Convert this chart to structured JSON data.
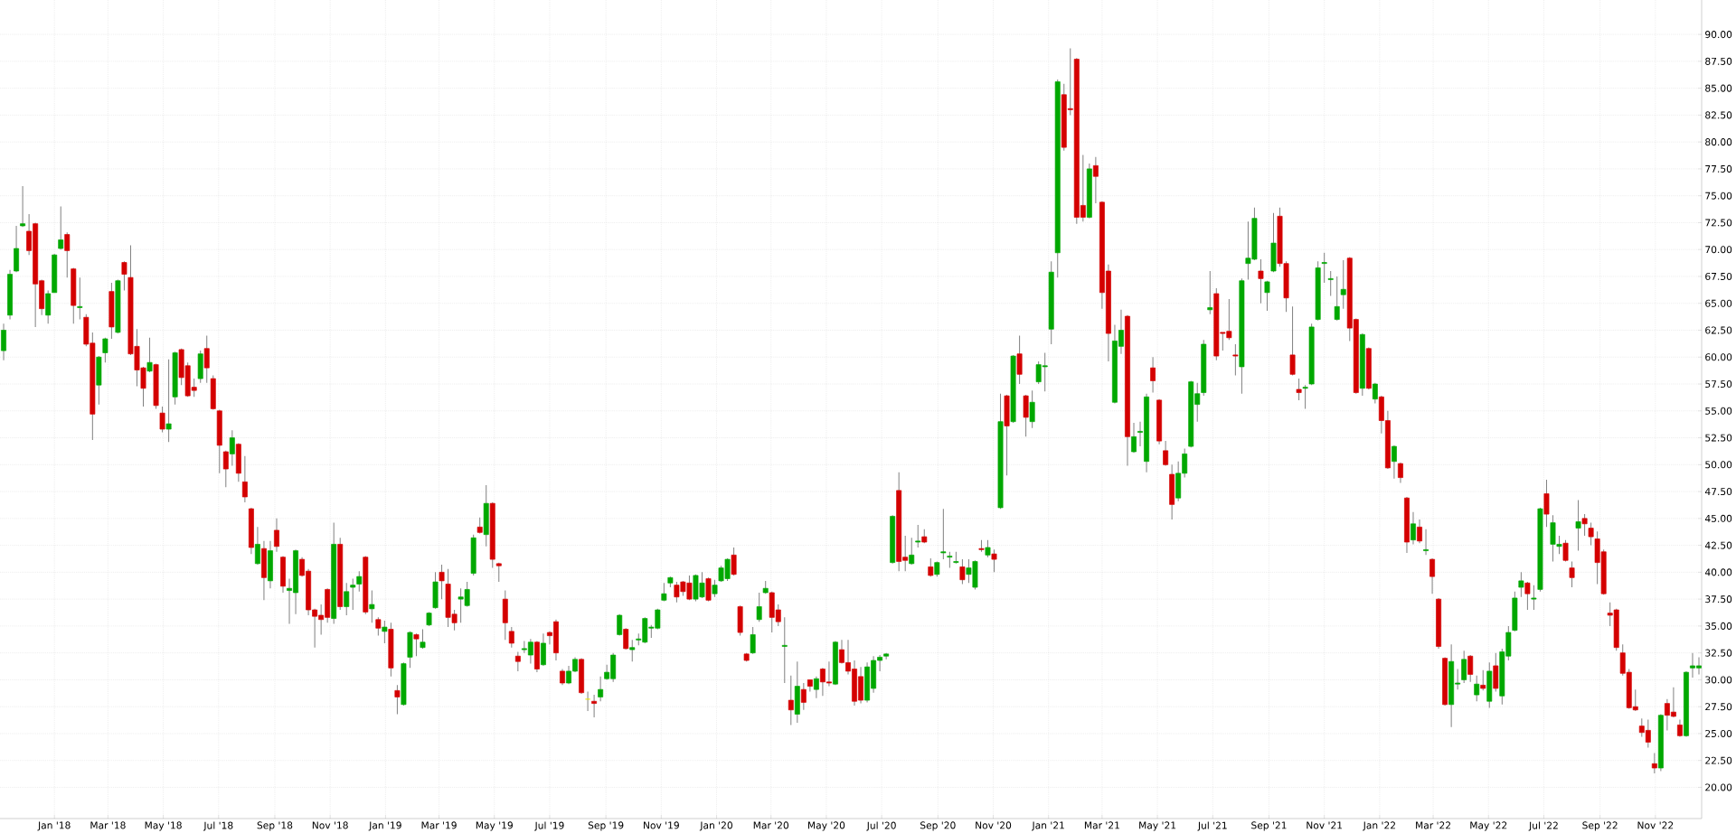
{
  "chart_data": {
    "type": "candlestick",
    "x": [
      "2017-11-06",
      "2017-11-13",
      "2017-11-20",
      "2017-11-27",
      "2017-12-04",
      "2017-12-11",
      "2017-12-18",
      "2017-12-25",
      "2018-01-01",
      "2018-01-08",
      "2018-01-15",
      "2018-01-22",
      "2018-01-29",
      "2018-02-05",
      "2018-02-12",
      "2018-02-19",
      "2018-02-26",
      "2018-03-05",
      "2018-03-12",
      "2018-03-19",
      "2018-03-26",
      "2018-04-02",
      "2018-04-09",
      "2018-04-16",
      "2018-04-23",
      "2018-04-30",
      "2018-05-07",
      "2018-05-14",
      "2018-05-21",
      "2018-05-28",
      "2018-06-04",
      "2018-06-11",
      "2018-06-18",
      "2018-06-25",
      "2018-07-02",
      "2018-07-09",
      "2018-07-16",
      "2018-07-23",
      "2018-07-30",
      "2018-08-06",
      "2018-08-13",
      "2018-08-20",
      "2018-08-27",
      "2018-09-03",
      "2018-09-10",
      "2018-09-17",
      "2018-09-24",
      "2018-10-01",
      "2018-10-08",
      "2018-10-15",
      "2018-10-22",
      "2018-10-29",
      "2018-11-05",
      "2018-11-12",
      "2018-11-19",
      "2018-11-26",
      "2018-12-03",
      "2018-12-10",
      "2018-12-17",
      "2018-12-24",
      "2018-12-31",
      "2019-01-07",
      "2019-01-14",
      "2019-01-21",
      "2019-01-28",
      "2019-02-04",
      "2019-02-11",
      "2019-02-18",
      "2019-02-25",
      "2019-03-04",
      "2019-03-11",
      "2019-03-18",
      "2019-03-25",
      "2019-04-01",
      "2019-04-08",
      "2019-04-15",
      "2019-04-22",
      "2019-04-29",
      "2019-05-06",
      "2019-05-13",
      "2019-05-20",
      "2019-05-27",
      "2019-06-03",
      "2019-06-10",
      "2019-06-17",
      "2019-06-24",
      "2019-07-01",
      "2019-07-08",
      "2019-07-15",
      "2019-07-22",
      "2019-07-29",
      "2019-08-05",
      "2019-08-12",
      "2019-08-19",
      "2019-08-26",
      "2019-09-02",
      "2019-09-09",
      "2019-09-16",
      "2019-09-23",
      "2019-09-30",
      "2019-10-07",
      "2019-10-14",
      "2019-10-21",
      "2019-10-28",
      "2019-11-04",
      "2019-11-11",
      "2019-11-18",
      "2019-11-25",
      "2019-12-02",
      "2019-12-09",
      "2019-12-16",
      "2019-12-23",
      "2019-12-30",
      "2020-01-06",
      "2020-01-13",
      "2020-01-20",
      "2020-01-27",
      "2020-02-03",
      "2020-02-10",
      "2020-02-17",
      "2020-02-24",
      "2020-03-02",
      "2020-03-09",
      "2020-03-16",
      "2020-03-23",
      "2020-03-30",
      "2020-04-06",
      "2020-04-13",
      "2020-04-20",
      "2020-04-27",
      "2020-05-04",
      "2020-05-11",
      "2020-05-18",
      "2020-05-25",
      "2020-06-01",
      "2020-06-08",
      "2020-06-15",
      "2020-06-22",
      "2020-06-29",
      "2020-07-06",
      "2020-07-13",
      "2020-07-20",
      "2020-07-27",
      "2020-08-03",
      "2020-08-10",
      "2020-08-17",
      "2020-08-24",
      "2020-08-31",
      "2020-09-07",
      "2020-09-14",
      "2020-09-21",
      "2020-09-28",
      "2020-10-05",
      "2020-10-12",
      "2020-10-19",
      "2020-10-26",
      "2020-11-02",
      "2020-11-09",
      "2020-11-16",
      "2020-11-23",
      "2020-11-30",
      "2020-12-07",
      "2020-12-14",
      "2020-12-21",
      "2020-12-28",
      "2021-01-04",
      "2021-01-11",
      "2021-01-18",
      "2021-01-25",
      "2021-02-01",
      "2021-02-08",
      "2021-02-15",
      "2021-02-22",
      "2021-03-01",
      "2021-03-08",
      "2021-03-15",
      "2021-03-22",
      "2021-03-29",
      "2021-04-05",
      "2021-04-12",
      "2021-04-19",
      "2021-04-26",
      "2021-05-03",
      "2021-05-10",
      "2021-05-17",
      "2021-05-24",
      "2021-05-31",
      "2021-06-07",
      "2021-06-14",
      "2021-06-21",
      "2021-06-28",
      "2021-07-05",
      "2021-07-12",
      "2021-07-19",
      "2021-07-26",
      "2021-08-02",
      "2021-08-09",
      "2021-08-16",
      "2021-08-23",
      "2021-08-30",
      "2021-09-06",
      "2021-09-13",
      "2021-09-20",
      "2021-09-27",
      "2021-10-04",
      "2021-10-11",
      "2021-10-18",
      "2021-10-25",
      "2021-11-01",
      "2021-11-08",
      "2021-11-15",
      "2021-11-22",
      "2021-11-29",
      "2021-12-06",
      "2021-12-13",
      "2021-12-20",
      "2021-12-27",
      "2022-01-03",
      "2022-01-10",
      "2022-01-17",
      "2022-01-24",
      "2022-01-31",
      "2022-02-07",
      "2022-02-14",
      "2022-02-21",
      "2022-02-28",
      "2022-03-07",
      "2022-03-14",
      "2022-03-21",
      "2022-03-28",
      "2022-04-04",
      "2022-04-11",
      "2022-04-18",
      "2022-04-25",
      "2022-05-02",
      "2022-05-09",
      "2022-05-16",
      "2022-05-23",
      "2022-05-30",
      "2022-06-06",
      "2022-06-13",
      "2022-06-20",
      "2022-06-27",
      "2022-07-04",
      "2022-07-11",
      "2022-07-18",
      "2022-07-25",
      "2022-08-01",
      "2022-08-08",
      "2022-08-15",
      "2022-08-22",
      "2022-08-29",
      "2022-09-05",
      "2022-09-12",
      "2022-09-19",
      "2022-09-26",
      "2022-10-03",
      "2022-10-10",
      "2022-10-17",
      "2022-10-24",
      "2022-10-31",
      "2022-11-07",
      "2022-11-14",
      "2022-11-21",
      "2022-11-28",
      "2022-12-05",
      "2022-12-12",
      "2022-12-19"
    ],
    "ohlc": [
      [
        60.6,
        63.1,
        59.7,
        62.5
      ],
      [
        63.9,
        68.1,
        63.5,
        67.7
      ],
      [
        68.0,
        72.2,
        67.9,
        70.1
      ],
      [
        72.2,
        75.9,
        72.1,
        72.4
      ],
      [
        71.7,
        73.3,
        69.5,
        69.9
      ],
      [
        72.4,
        72.5,
        62.8,
        66.8
      ],
      [
        67.1,
        67.2,
        63.9,
        64.5
      ],
      [
        63.9,
        66.2,
        63.1,
        65.9
      ],
      [
        66.0,
        69.6,
        66.0,
        69.5
      ],
      [
        70.1,
        74.0,
        70.0,
        70.9
      ],
      [
        71.4,
        71.6,
        67.4,
        69.9
      ],
      [
        68.2,
        68.3,
        63.1,
        64.8
      ],
      [
        64.6,
        67.4,
        63.5,
        64.7
      ],
      [
        63.7,
        64.0,
        61.0,
        61.2
      ],
      [
        61.3,
        62.3,
        52.3,
        54.7
      ],
      [
        57.4,
        60.1,
        55.6,
        60.0
      ],
      [
        60.4,
        61.8,
        59.5,
        61.7
      ],
      [
        66.1,
        66.9,
        61.7,
        62.8
      ],
      [
        62.3,
        67.2,
        62.2,
        67.1
      ],
      [
        68.8,
        68.9,
        66.2,
        67.7
      ],
      [
        67.4,
        70.4,
        60.2,
        60.3
      ],
      [
        61.0,
        62.6,
        57.3,
        58.8
      ],
      [
        59.0,
        59.1,
        55.4,
        57.1
      ],
      [
        58.7,
        61.8,
        58.6,
        59.5
      ],
      [
        59.3,
        59.4,
        55.2,
        55.5
      ],
      [
        54.8,
        55.4,
        53.0,
        53.3
      ],
      [
        53.3,
        59.8,
        52.1,
        53.8
      ],
      [
        56.3,
        60.5,
        55.6,
        60.4
      ],
      [
        60.7,
        60.8,
        57.4,
        58.1
      ],
      [
        59.2,
        59.5,
        56.3,
        56.4
      ],
      [
        57.2,
        58.0,
        56.3,
        56.9
      ],
      [
        58.0,
        60.6,
        57.6,
        60.3
      ],
      [
        60.8,
        62.0,
        57.6,
        59.0
      ],
      [
        58.0,
        58.3,
        55.1,
        55.2
      ],
      [
        55.0,
        55.1,
        49.2,
        51.8
      ],
      [
        51.2,
        51.3,
        47.9,
        49.6
      ],
      [
        51.0,
        53.2,
        49.9,
        52.5
      ],
      [
        51.9,
        52.0,
        48.4,
        49.2
      ],
      [
        48.4,
        50.8,
        46.5,
        47.0
      ],
      [
        45.9,
        46.0,
        41.7,
        42.3
      ],
      [
        40.8,
        44.2,
        40.7,
        42.6
      ],
      [
        42.2,
        42.9,
        37.4,
        39.5
      ],
      [
        39.2,
        42.9,
        38.5,
        42.0
      ],
      [
        43.9,
        45.0,
        41.9,
        42.4
      ],
      [
        41.4,
        41.5,
        38.1,
        38.7
      ],
      [
        38.3,
        39.4,
        35.2,
        38.5
      ],
      [
        38.1,
        42.1,
        36.1,
        42.0
      ],
      [
        41.2,
        41.4,
        39.6,
        39.7
      ],
      [
        40.1,
        40.3,
        36.0,
        36.5
      ],
      [
        36.5,
        36.6,
        33.0,
        35.9
      ],
      [
        36.0,
        37.0,
        34.2,
        35.6
      ],
      [
        38.4,
        38.5,
        35.3,
        35.8
      ],
      [
        35.7,
        44.6,
        35.2,
        42.6
      ],
      [
        42.6,
        43.2,
        36.5,
        36.8
      ],
      [
        36.8,
        39.0,
        36.0,
        38.2
      ],
      [
        38.6,
        39.4,
        36.5,
        38.8
      ],
      [
        38.9,
        40.1,
        38.2,
        39.6
      ],
      [
        41.4,
        41.5,
        36.1,
        36.3
      ],
      [
        36.6,
        38.3,
        35.3,
        37.0
      ],
      [
        35.6,
        35.8,
        34.1,
        34.8
      ],
      [
        34.5,
        35.5,
        33.4,
        34.9
      ],
      [
        34.7,
        35.3,
        30.3,
        31.1
      ],
      [
        29.0,
        29.5,
        26.8,
        28.4
      ],
      [
        27.7,
        31.6,
        27.6,
        31.5
      ],
      [
        32.1,
        34.5,
        31.1,
        34.4
      ],
      [
        34.2,
        34.3,
        32.2,
        33.8
      ],
      [
        33.0,
        34.7,
        32.9,
        33.5
      ],
      [
        35.1,
        36.3,
        35.0,
        36.2
      ],
      [
        36.7,
        40.0,
        36.6,
        39.1
      ],
      [
        40.0,
        40.7,
        37.5,
        39.2
      ],
      [
        38.9,
        40.3,
        34.9,
        35.8
      ],
      [
        36.1,
        36.5,
        34.6,
        35.3
      ],
      [
        37.5,
        38.5,
        35.3,
        37.7
      ],
      [
        36.9,
        39.1,
        36.8,
        38.4
      ],
      [
        39.9,
        43.5,
        39.7,
        43.2
      ],
      [
        44.2,
        45.1,
        43.6,
        43.7
      ],
      [
        43.5,
        48.1,
        42.4,
        46.4
      ],
      [
        46.4,
        46.5,
        40.4,
        41.2
      ],
      [
        40.8,
        40.9,
        39.1,
        40.6
      ],
      [
        37.5,
        38.3,
        33.7,
        35.3
      ],
      [
        34.5,
        34.9,
        33.0,
        33.4
      ],
      [
        32.2,
        32.6,
        30.8,
        31.7
      ],
      [
        32.8,
        33.6,
        32.5,
        32.9
      ],
      [
        32.3,
        33.8,
        31.5,
        33.5
      ],
      [
        33.5,
        33.6,
        30.7,
        31.0
      ],
      [
        31.4,
        34.3,
        31.3,
        33.4
      ],
      [
        34.4,
        34.5,
        33.3,
        34.1
      ],
      [
        35.4,
        35.6,
        31.8,
        32.5
      ],
      [
        30.8,
        31.0,
        29.5,
        29.7
      ],
      [
        29.7,
        31.3,
        29.6,
        30.8
      ],
      [
        30.8,
        32.1,
        30.7,
        31.9
      ],
      [
        31.9,
        32.0,
        28.7,
        28.8
      ],
      [
        28.2,
        28.9,
        27.1,
        28.2
      ],
      [
        28.0,
        28.6,
        26.5,
        27.8
      ],
      [
        28.4,
        30.3,
        28.0,
        29.1
      ],
      [
        30.1,
        31.4,
        30.0,
        30.7
      ],
      [
        30.1,
        32.5,
        29.8,
        32.3
      ],
      [
        34.2,
        36.1,
        34.1,
        36.0
      ],
      [
        34.7,
        34.8,
        32.8,
        32.9
      ],
      [
        32.8,
        33.7,
        31.7,
        33.0
      ],
      [
        33.7,
        34.3,
        33.2,
        33.8
      ],
      [
        33.5,
        35.8,
        33.4,
        35.7
      ],
      [
        34.8,
        35.1,
        33.9,
        34.9
      ],
      [
        34.8,
        36.6,
        34.7,
        36.5
      ],
      [
        37.4,
        39.0,
        37.3,
        38.0
      ],
      [
        39.0,
        39.6,
        38.6,
        39.5
      ],
      [
        38.8,
        39.1,
        37.2,
        37.7
      ],
      [
        39.1,
        39.2,
        37.8,
        38.2
      ],
      [
        39.0,
        39.7,
        37.4,
        37.5
      ],
      [
        37.5,
        39.8,
        37.3,
        39.7
      ],
      [
        37.7,
        40.0,
        37.6,
        39.0
      ],
      [
        39.4,
        39.5,
        37.3,
        37.4
      ],
      [
        38.0,
        39.3,
        37.7,
        38.8
      ],
      [
        39.2,
        40.6,
        39.1,
        40.4
      ],
      [
        39.4,
        41.3,
        39.2,
        41.2
      ],
      [
        41.6,
        42.3,
        39.7,
        39.8
      ],
      [
        36.8,
        36.9,
        34.1,
        34.4
      ],
      [
        32.4,
        32.5,
        31.7,
        31.8
      ],
      [
        32.5,
        34.9,
        32.4,
        34.2
      ],
      [
        35.6,
        38.1,
        35.4,
        36.8
      ],
      [
        38.1,
        39.2,
        38.0,
        38.5
      ],
      [
        38.1,
        38.2,
        34.4,
        35.8
      ],
      [
        36.5,
        37.0,
        35.0,
        35.4
      ],
      [
        33.1,
        35.8,
        29.7,
        33.2
      ],
      [
        28.1,
        30.4,
        25.8,
        27.2
      ],
      [
        26.8,
        31.7,
        26.0,
        29.4
      ],
      [
        29.1,
        29.7,
        27.2,
        27.9
      ],
      [
        30.0,
        30.0,
        28.9,
        29.4
      ],
      [
        29.1,
        30.3,
        28.3,
        30.1
      ],
      [
        31.0,
        31.1,
        28.5,
        29.8
      ],
      [
        29.8,
        31.7,
        29.4,
        29.7
      ],
      [
        29.6,
        33.6,
        29.5,
        33.5
      ],
      [
        32.8,
        33.7,
        31.5,
        31.6
      ],
      [
        31.6,
        33.7,
        30.5,
        30.8
      ],
      [
        31.0,
        31.8,
        27.6,
        28.0
      ],
      [
        30.3,
        31.2,
        27.8,
        28.1
      ],
      [
        28.1,
        31.6,
        27.9,
        31.2
      ],
      [
        29.2,
        32.2,
        28.8,
        31.8
      ],
      [
        31.8,
        32.3,
        30.8,
        32.1
      ],
      [
        32.2,
        32.5,
        31.9,
        32.4
      ],
      [
        40.9,
        45.3,
        40.8,
        45.2
      ],
      [
        47.6,
        49.3,
        40.1,
        41.0
      ],
      [
        41.4,
        43.4,
        40.1,
        41.1
      ],
      [
        40.8,
        43.2,
        40.7,
        41.6
      ],
      [
        42.8,
        44.4,
        42.3,
        42.9
      ],
      [
        43.3,
        44.0,
        42.7,
        42.8
      ],
      [
        40.5,
        41.3,
        39.6,
        39.7
      ],
      [
        39.8,
        41.0,
        39.6,
        40.9
      ],
      [
        41.8,
        45.9,
        41.2,
        41.9
      ],
      [
        41.4,
        41.9,
        40.4,
        41.5
      ],
      [
        40.9,
        41.9,
        40.8,
        41.0
      ],
      [
        40.5,
        41.2,
        38.9,
        39.3
      ],
      [
        39.8,
        41.2,
        39.0,
        40.4
      ],
      [
        38.6,
        41.1,
        38.4,
        41.0
      ],
      [
        42.2,
        43.0,
        41.9,
        42.1
      ],
      [
        41.6,
        43.0,
        41.4,
        42.3
      ],
      [
        41.7,
        42.1,
        40.0,
        41.2
      ],
      [
        46.0,
        56.6,
        45.9,
        54.0
      ],
      [
        56.4,
        56.5,
        49.0,
        53.6
      ],
      [
        54.0,
        60.2,
        53.9,
        60.1
      ],
      [
        60.3,
        62.0,
        57.5,
        58.4
      ],
      [
        56.4,
        56.5,
        52.6,
        54.4
      ],
      [
        54.0,
        56.9,
        53.4,
        55.8
      ],
      [
        57.7,
        59.6,
        57.5,
        59.3
      ],
      [
        59.1,
        60.4,
        56.8,
        59.2
      ],
      [
        62.6,
        68.9,
        61.2,
        67.9
      ],
      [
        69.7,
        85.8,
        67.4,
        85.6
      ],
      [
        84.4,
        85.4,
        79.2,
        79.5
      ],
      [
        83.1,
        88.7,
        82.5,
        83.0
      ],
      [
        87.7,
        87.8,
        72.4,
        73.0
      ],
      [
        74.1,
        78.8,
        72.6,
        73.0
      ],
      [
        73.0,
        78.0,
        72.9,
        77.5
      ],
      [
        77.8,
        78.6,
        74.3,
        76.8
      ],
      [
        74.4,
        74.5,
        64.5,
        66.0
      ],
      [
        68.0,
        68.6,
        59.6,
        62.2
      ],
      [
        55.8,
        63.0,
        55.7,
        61.5
      ],
      [
        61.0,
        64.4,
        60.3,
        62.5
      ],
      [
        63.8,
        63.9,
        49.9,
        52.6
      ],
      [
        51.2,
        53.9,
        51.1,
        52.6
      ],
      [
        53.0,
        54.0,
        51.7,
        53.1
      ],
      [
        50.3,
        56.6,
        49.3,
        56.3
      ],
      [
        59.0,
        60.0,
        56.7,
        57.8
      ],
      [
        56.0,
        56.1,
        51.9,
        52.2
      ],
      [
        51.3,
        52.2,
        49.9,
        50.0
      ],
      [
        49.1,
        50.0,
        44.9,
        46.3
      ],
      [
        46.9,
        50.3,
        46.6,
        49.2
      ],
      [
        49.2,
        51.5,
        48.8,
        51.0
      ],
      [
        51.7,
        57.8,
        51.6,
        57.7
      ],
      [
        55.6,
        57.6,
        54.0,
        56.6
      ],
      [
        56.7,
        61.6,
        56.4,
        61.2
      ],
      [
        64.4,
        68.0,
        64.0,
        64.6
      ],
      [
        65.9,
        66.4,
        59.7,
        60.1
      ],
      [
        62.3,
        62.3,
        60.6,
        62.2
      ],
      [
        62.4,
        65.4,
        61.6,
        61.8
      ],
      [
        60.2,
        61.2,
        58.3,
        60.1
      ],
      [
        59.1,
        67.3,
        56.6,
        67.1
      ],
      [
        68.7,
        72.6,
        67.2,
        69.2
      ],
      [
        69.1,
        73.9,
        69.0,
        72.9
      ],
      [
        68.0,
        69.1,
        65.0,
        67.3
      ],
      [
        66.0,
        67.1,
        64.3,
        67.0
      ],
      [
        68.0,
        73.4,
        67.9,
        70.6
      ],
      [
        73.1,
        73.9,
        68.4,
        68.7
      ],
      [
        68.7,
        68.9,
        64.2,
        65.5
      ],
      [
        60.2,
        64.7,
        58.3,
        58.4
      ],
      [
        57.0,
        58.0,
        56.0,
        56.7
      ],
      [
        57.1,
        57.4,
        55.2,
        57.2
      ],
      [
        57.5,
        63.1,
        57.4,
        62.8
      ],
      [
        63.5,
        68.9,
        63.4,
        68.3
      ],
      [
        68.7,
        69.7,
        66.9,
        68.8
      ],
      [
        67.2,
        68.0,
        65.7,
        67.3
      ],
      [
        63.5,
        67.5,
        63.4,
        64.7
      ],
      [
        65.8,
        69.0,
        64.5,
        66.3
      ],
      [
        69.2,
        69.3,
        61.5,
        62.7
      ],
      [
        63.5,
        63.6,
        56.6,
        56.7
      ],
      [
        57.1,
        62.2,
        56.4,
        62.1
      ],
      [
        60.8,
        60.9,
        57.0,
        57.1
      ],
      [
        56.1,
        57.6,
        55.7,
        57.5
      ],
      [
        56.3,
        56.4,
        52.9,
        54.1
      ],
      [
        54.1,
        55.0,
        49.6,
        49.7
      ],
      [
        50.3,
        51.8,
        48.7,
        51.7
      ],
      [
        50.1,
        50.2,
        48.3,
        48.8
      ],
      [
        46.9,
        47.0,
        41.8,
        42.8
      ],
      [
        43.0,
        45.6,
        42.6,
        44.5
      ],
      [
        44.2,
        44.9,
        42.7,
        42.9
      ],
      [
        42.0,
        44.0,
        41.6,
        42.1
      ],
      [
        41.2,
        41.3,
        38.0,
        39.6
      ],
      [
        37.5,
        37.6,
        32.9,
        33.1
      ],
      [
        32.0,
        32.1,
        27.6,
        27.7
      ],
      [
        27.7,
        33.3,
        25.6,
        31.7
      ],
      [
        29.6,
        31.0,
        29.1,
        29.7
      ],
      [
        30.0,
        32.7,
        29.7,
        31.9
      ],
      [
        32.2,
        32.3,
        29.8,
        30.5
      ],
      [
        28.6,
        30.4,
        28.0,
        29.6
      ],
      [
        29.5,
        30.9,
        29.0,
        29.2
      ],
      [
        28.0,
        31.6,
        27.4,
        30.8
      ],
      [
        31.3,
        32.5,
        28.9,
        29.2
      ],
      [
        28.5,
        32.9,
        27.7,
        32.6
      ],
      [
        32.2,
        35.0,
        31.8,
        34.4
      ],
      [
        34.6,
        38.2,
        34.5,
        37.6
      ],
      [
        38.6,
        40.0,
        37.7,
        39.2
      ],
      [
        39.0,
        39.1,
        36.5,
        38.0
      ],
      [
        37.5,
        38.8,
        36.5,
        37.6
      ],
      [
        38.4,
        46.0,
        38.2,
        45.9
      ],
      [
        47.3,
        48.6,
        44.2,
        45.4
      ],
      [
        42.6,
        45.3,
        41.0,
        44.6
      ],
      [
        42.4,
        43.4,
        41.7,
        42.6
      ],
      [
        42.7,
        43.0,
        41.0,
        41.1
      ],
      [
        40.4,
        41.0,
        38.6,
        39.5
      ],
      [
        44.1,
        46.7,
        42.0,
        44.7
      ],
      [
        45.0,
        45.4,
        43.4,
        44.5
      ],
      [
        44.1,
        44.6,
        42.5,
        43.3
      ],
      [
        43.1,
        43.8,
        38.9,
        40.9
      ],
      [
        41.9,
        42.1,
        37.9,
        38.0
      ],
      [
        36.2,
        37.2,
        35.0,
        36.0
      ],
      [
        36.5,
        36.6,
        32.7,
        33.0
      ],
      [
        32.5,
        33.3,
        30.4,
        30.6
      ],
      [
        30.7,
        31.0,
        27.3,
        27.4
      ],
      [
        27.5,
        29.1,
        27.1,
        27.2
      ],
      [
        25.7,
        26.4,
        24.7,
        25.1
      ],
      [
        25.3,
        26.3,
        23.7,
        24.2
      ],
      [
        22.2,
        23.2,
        21.3,
        21.8
      ],
      [
        21.8,
        26.8,
        21.5,
        26.7
      ],
      [
        27.8,
        28.2,
        25.3,
        26.7
      ],
      [
        27.0,
        29.3,
        26.5,
        26.6
      ],
      [
        25.8,
        26.3,
        24.7,
        24.8
      ],
      [
        24.8,
        30.8,
        24.7,
        30.7
      ],
      [
        31.1,
        32.5,
        30.2,
        31.3
      ],
      [
        31.1,
        32.1,
        30.5,
        31.3
      ]
    ],
    "colors": [
      "#00a800",
      "#00a800",
      "#00a800",
      "#00a800",
      "#d40000",
      "#d40000",
      "#d40000",
      "#00a800",
      "#00a800",
      "#00a800",
      "#d40000",
      "#d40000",
      "#00a800",
      "#d40000",
      "#d40000",
      "#00a800",
      "#00a800",
      "#d40000",
      "#00a800",
      "#d40000",
      "#d40000",
      "#d40000",
      "#d40000",
      "#00a800",
      "#d40000",
      "#d40000",
      "#00a800",
      "#00a800",
      "#d40000",
      "#d40000",
      "#d40000",
      "#00a800",
      "#d40000",
      "#d40000",
      "#d40000",
      "#d40000",
      "#00a800",
      "#d40000",
      "#d40000",
      "#d40000",
      "#00a800",
      "#d40000",
      "#00a800",
      "#d40000",
      "#d40000",
      "#00a800",
      "#00a800",
      "#d40000",
      "#d40000",
      "#d40000",
      "#d40000",
      "#d40000",
      "#00a800",
      "#d40000",
      "#00a800",
      "#00a800",
      "#00a800",
      "#d40000",
      "#00a800",
      "#d40000",
      "#00a800",
      "#d40000",
      "#d40000",
      "#00a800",
      "#00a800",
      "#d40000",
      "#00a800",
      "#00a800",
      "#00a800",
      "#d40000",
      "#d40000",
      "#d40000",
      "#00a800",
      "#00a800",
      "#00a800",
      "#d40000",
      "#00a800",
      "#d40000",
      "#d40000",
      "#d40000",
      "#d40000",
      "#d40000",
      "#00a800",
      "#00a800",
      "#d40000",
      "#00a800",
      "#d40000",
      "#d40000",
      "#d40000",
      "#00a800",
      "#00a800",
      "#d40000",
      "#e6e600",
      "#d40000",
      "#00a800",
      "#00a800",
      "#00a800",
      "#00a800",
      "#d40000",
      "#00a800",
      "#00a800",
      "#00a800",
      "#00a800",
      "#00a800",
      "#00a800",
      "#00a800",
      "#d40000",
      "#d40000",
      "#d40000",
      "#00a800",
      "#00a800",
      "#d40000",
      "#00a800",
      "#00a800",
      "#00a800",
      "#d40000",
      "#d40000",
      "#d40000",
      "#00a800",
      "#00a800",
      "#00a800",
      "#d40000",
      "#d40000",
      "#00a800",
      "#d40000",
      "#00a800",
      "#d40000",
      "#d40000",
      "#00a800",
      "#d40000",
      "#d40000",
      "#00a800",
      "#d40000",
      "#d40000",
      "#d40000",
      "#d40000",
      "#00a800",
      "#00a800",
      "#00a800",
      "#00a800",
      "#00a800",
      "#d40000",
      "#d40000",
      "#00a800",
      "#00a800",
      "#d40000",
      "#d40000",
      "#00a800",
      "#00a800",
      "#00a800",
      "#00a800",
      "#d40000",
      "#00a800",
      "#00a800",
      "#d40000",
      "#00a800",
      "#d40000",
      "#00a800",
      "#d40000",
      "#00a800",
      "#d40000",
      "#d40000",
      "#00a800",
      "#00a800",
      "#00a800",
      "#00a800",
      "#00a800",
      "#d40000",
      "#d40000",
      "#d40000",
      "#d40000",
      "#00a800",
      "#d40000",
      "#d40000",
      "#d40000",
      "#00a800",
      "#00a800",
      "#d40000",
      "#00a800",
      "#00a800",
      "#00a800",
      "#d40000",
      "#d40000",
      "#d40000",
      "#d40000",
      "#00a800",
      "#00a800",
      "#00a800",
      "#00a800",
      "#00a800",
      "#00a800",
      "#d40000",
      "#d40000",
      "#d40000",
      "#d40000",
      "#00a800",
      "#00a800",
      "#00a800",
      "#d40000",
      "#00a800",
      "#00a800",
      "#d40000",
      "#d40000",
      "#d40000",
      "#d40000",
      "#00a800",
      "#00a800",
      "#00a800",
      "#00a800",
      "#00a800",
      "#00a800",
      "#00a800",
      "#d40000",
      "#d40000",
      "#00a800",
      "#d40000",
      "#00a800",
      "#d40000",
      "#d40000",
      "#00a800",
      "#d40000",
      "#d40000",
      "#00a800",
      "#d40000",
      "#00a800",
      "#d40000",
      "#d40000",
      "#d40000",
      "#00a800",
      "#00a800",
      "#00a800",
      "#d40000",
      "#00a800",
      "#d40000",
      "#00a800",
      "#d40000",
      "#00a800",
      "#00a800",
      "#00a800",
      "#00a800",
      "#d40000",
      "#00a800",
      "#00a800",
      "#d40000",
      "#00a800",
      "#00a800",
      "#d40000",
      "#d40000",
      "#00a800",
      "#d40000",
      "#d40000",
      "#d40000",
      "#d40000",
      "#d40000",
      "#d40000",
      "#d40000",
      "#d40000",
      "#d40000",
      "#d40000",
      "#d40000",
      "#d40000",
      "#00a800",
      "#d40000",
      "#d40000",
      "#d40000",
      "#00a800",
      "#00a800",
      "#00a800"
    ],
    "xlim": [
      "2017-11-02",
      "2022-12-22"
    ],
    "ylim": [
      17.1,
      93.2
    ],
    "xticks": [
      {
        "value": "2018-01-01",
        "label": "Jan '18"
      },
      {
        "value": "2018-03-01",
        "label": "Mar '18"
      },
      {
        "value": "2018-05-01",
        "label": "May '18"
      },
      {
        "value": "2018-07-01",
        "label": "Jul '18"
      },
      {
        "value": "2018-09-01",
        "label": "Sep '18"
      },
      {
        "value": "2018-11-01",
        "label": "Nov '18"
      },
      {
        "value": "2019-01-01",
        "label": "Jan '19"
      },
      {
        "value": "2019-03-01",
        "label": "Mar '19"
      },
      {
        "value": "2019-05-01",
        "label": "May '19"
      },
      {
        "value": "2019-07-01",
        "label": "Jul '19"
      },
      {
        "value": "2019-09-01",
        "label": "Sep '19"
      },
      {
        "value": "2019-11-01",
        "label": "Nov '19"
      },
      {
        "value": "2020-01-01",
        "label": "Jan '20"
      },
      {
        "value": "2020-03-01",
        "label": "Mar '20"
      },
      {
        "value": "2020-05-01",
        "label": "May '20"
      },
      {
        "value": "2020-07-01",
        "label": "Jul '20"
      },
      {
        "value": "2020-09-01",
        "label": "Sep '20"
      },
      {
        "value": "2020-11-01",
        "label": "Nov '20"
      },
      {
        "value": "2021-01-01",
        "label": "Jan '21"
      },
      {
        "value": "2021-03-01",
        "label": "Mar '21"
      },
      {
        "value": "2021-05-01",
        "label": "May '21"
      },
      {
        "value": "2021-07-01",
        "label": "Jul '21"
      },
      {
        "value": "2021-09-01",
        "label": "Sep '21"
      },
      {
        "value": "2021-11-01",
        "label": "Nov '21"
      },
      {
        "value": "2022-01-01",
        "label": "Jan '22"
      },
      {
        "value": "2022-03-01",
        "label": "Mar '22"
      },
      {
        "value": "2022-05-01",
        "label": "May '22"
      },
      {
        "value": "2022-07-01",
        "label": "Jul '22"
      },
      {
        "value": "2022-09-01",
        "label": "Sep '22"
      },
      {
        "value": "2022-11-01",
        "label": "Nov '22"
      }
    ],
    "yticks": [
      {
        "value": 20,
        "label": "20.00"
      },
      {
        "value": 22.5,
        "label": "22.50"
      },
      {
        "value": 25,
        "label": "25.00"
      },
      {
        "value": 27.5,
        "label": "27.50"
      },
      {
        "value": 30,
        "label": "30.00"
      },
      {
        "value": 32.5,
        "label": "32.50"
      },
      {
        "value": 35,
        "label": "35.00"
      },
      {
        "value": 37.5,
        "label": "37.50"
      },
      {
        "value": 40,
        "label": "40.00"
      },
      {
        "value": 42.5,
        "label": "42.50"
      },
      {
        "value": 45,
        "label": "45.00"
      },
      {
        "value": 47.5,
        "label": "47.50"
      },
      {
        "value": 50,
        "label": "50.00"
      },
      {
        "value": 52.5,
        "label": "52.50"
      },
      {
        "value": 55,
        "label": "55.00"
      },
      {
        "value": 57.5,
        "label": "57.50"
      },
      {
        "value": 60,
        "label": "60.00"
      },
      {
        "value": 62.5,
        "label": "62.50"
      },
      {
        "value": 65,
        "label": "65.00"
      },
      {
        "value": 67.5,
        "label": "67.50"
      },
      {
        "value": 70,
        "label": "70.00"
      },
      {
        "value": 72.5,
        "label": "72.50"
      },
      {
        "value": 75,
        "label": "75.00"
      },
      {
        "value": 77.5,
        "label": "77.50"
      },
      {
        "value": 80,
        "label": "80.00"
      },
      {
        "value": 82.5,
        "label": "82.50"
      },
      {
        "value": 85,
        "label": "85.00"
      },
      {
        "value": 87.5,
        "label": "87.50"
      },
      {
        "value": 90,
        "label": "90.00"
      }
    ],
    "grid": true
  }
}
